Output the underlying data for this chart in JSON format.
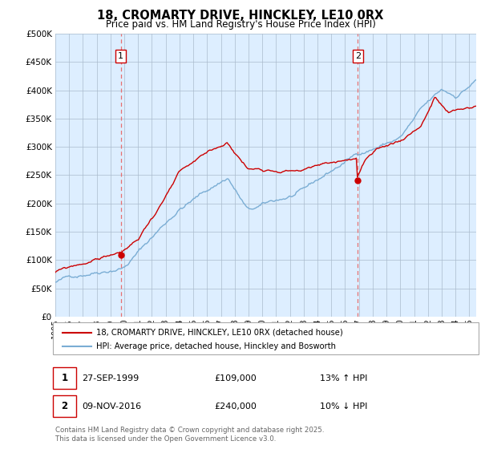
{
  "title": "18, CROMARTY DRIVE, HINCKLEY, LE10 0RX",
  "subtitle": "Price paid vs. HM Land Registry's House Price Index (HPI)",
  "sale1_date": "27-SEP-1999",
  "sale1_price": 109000,
  "sale1_hpi": "13% ↑ HPI",
  "sale1_label": "1",
  "sale2_date": "09-NOV-2016",
  "sale2_price": 240000,
  "sale2_hpi": "10% ↓ HPI",
  "sale2_label": "2",
  "legend_line1": "18, CROMARTY DRIVE, HINCKLEY, LE10 0RX (detached house)",
  "legend_line2": "HPI: Average price, detached house, Hinckley and Bosworth",
  "footer": "Contains HM Land Registry data © Crown copyright and database right 2025.\nThis data is licensed under the Open Government Licence v3.0.",
  "line_color_red": "#cc0000",
  "line_color_blue": "#7aadd4",
  "vline_color": "#e87070",
  "background_color": "#ffffff",
  "chart_bg_color": "#ddeeff",
  "grid_color": "#aabbcc",
  "ylim": [
    0,
    500000
  ],
  "yticks": [
    0,
    50000,
    100000,
    150000,
    200000,
    250000,
    300000,
    350000,
    400000,
    450000,
    500000
  ],
  "start_year": 1995,
  "end_year": 2025
}
